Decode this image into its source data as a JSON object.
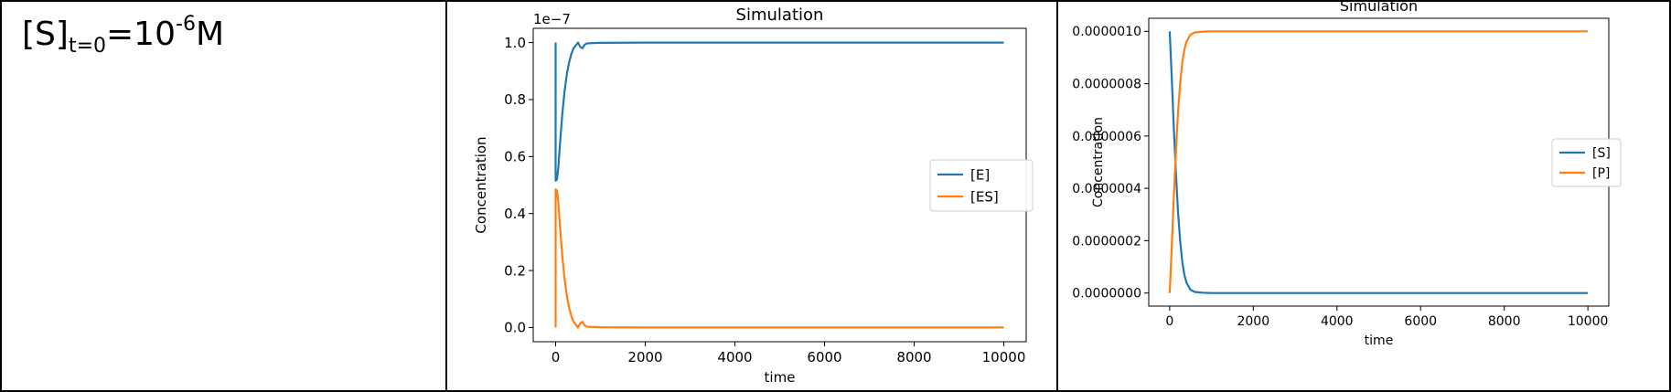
{
  "label": {
    "species": "[S]",
    "sub": "t=0",
    "eq": "=10",
    "exp": "-6",
    "unit": "M"
  },
  "chart_data": [
    {
      "type": "line",
      "title": "Simulation",
      "xlabel": "time",
      "ylabel": "Concentration",
      "offset_text": "1e−7",
      "xlim": [
        -500,
        10500
      ],
      "ylim": [
        -0.05,
        1.05
      ],
      "xticks": [
        0,
        2000,
        4000,
        6000,
        8000,
        10000
      ],
      "xtick_labels": [
        "0",
        "2000",
        "4000",
        "6000",
        "8000",
        "10000"
      ],
      "yticks": [
        0.0,
        0.2,
        0.4,
        0.6,
        0.8,
        1.0
      ],
      "ytick_labels": [
        "0.0",
        "0.2",
        "0.4",
        "0.6",
        "0.8",
        "1.0"
      ],
      "legend_position": "center-right",
      "series": [
        {
          "name": "[E]",
          "color": "#1f77b4",
          "x": [
            0,
            1,
            30,
            60,
            100,
            150,
            200,
            250,
            300,
            350,
            400,
            450,
            500,
            550,
            600,
            650,
            700,
            800,
            1000,
            2000,
            4000,
            6000,
            8000,
            10000
          ],
          "y": [
            1.0,
            0.515,
            0.52,
            0.56,
            0.65,
            0.75,
            0.83,
            0.89,
            0.93,
            0.96,
            0.98,
            0.99,
            1.0,
            0.985,
            0.98,
            0.993,
            0.997,
            0.998,
            0.999,
            1.0,
            1.0,
            1.0,
            1.0,
            1.0
          ]
        },
        {
          "name": "[ES]",
          "color": "#ff7f0e",
          "x": [
            0,
            1,
            30,
            60,
            100,
            150,
            200,
            250,
            300,
            350,
            400,
            450,
            500,
            550,
            600,
            650,
            700,
            800,
            1000,
            2000,
            4000,
            6000,
            8000,
            10000
          ],
          "y": [
            0.0,
            0.485,
            0.48,
            0.44,
            0.35,
            0.25,
            0.17,
            0.11,
            0.07,
            0.04,
            0.02,
            0.01,
            0.0,
            0.015,
            0.02,
            0.007,
            0.003,
            0.002,
            0.001,
            0.0,
            0.0,
            0.0,
            0.0,
            0.0
          ]
        }
      ]
    },
    {
      "type": "line",
      "title": "Simulation",
      "xlabel": "time",
      "ylabel": "Concentration",
      "xlim": [
        -500,
        10500
      ],
      "ylim": [
        -5e-08,
        1.05e-06
      ],
      "xticks": [
        0,
        2000,
        4000,
        6000,
        8000,
        10000
      ],
      "xtick_labels": [
        "0",
        "2000",
        "4000",
        "6000",
        "8000",
        "10000"
      ],
      "yticks": [
        0.0,
        2e-07,
        4e-07,
        6e-07,
        8e-07,
        1e-06
      ],
      "ytick_labels": [
        "0.0000000",
        "0.0000002",
        "0.0000004",
        "0.0000006",
        "0.0000008",
        "0.0000010"
      ],
      "legend_position": "center-right",
      "series": [
        {
          "name": "[S]",
          "color": "#1f77b4",
          "x": [
            0,
            50,
            100,
            150,
            200,
            250,
            300,
            350,
            400,
            500,
            600,
            800,
            1000,
            2000,
            4000,
            6000,
            8000,
            10000
          ],
          "y": [
            1e-06,
            8.2e-07,
            6.3e-07,
            4.6e-07,
            3.1e-07,
            2e-07,
            1.2e-07,
            7e-08,
            4e-08,
            1.2e-08,
            4e-09,
            1e-09,
            0.0,
            0.0,
            0.0,
            0.0,
            0.0,
            0.0
          ]
        },
        {
          "name": "[P]",
          "color": "#ff7f0e",
          "x": [
            0,
            50,
            100,
            150,
            200,
            250,
            300,
            350,
            400,
            500,
            600,
            800,
            1000,
            2000,
            4000,
            6000,
            8000,
            10000
          ],
          "y": [
            0.0,
            1.8e-07,
            3.7e-07,
            5.4e-07,
            6.9e-07,
            8e-07,
            8.8e-07,
            9.3e-07,
            9.6e-07,
            9.88e-07,
            9.96e-07,
            9.99e-07,
            1e-06,
            1e-06,
            1e-06,
            1e-06,
            1e-06,
            1e-06
          ]
        }
      ]
    }
  ]
}
